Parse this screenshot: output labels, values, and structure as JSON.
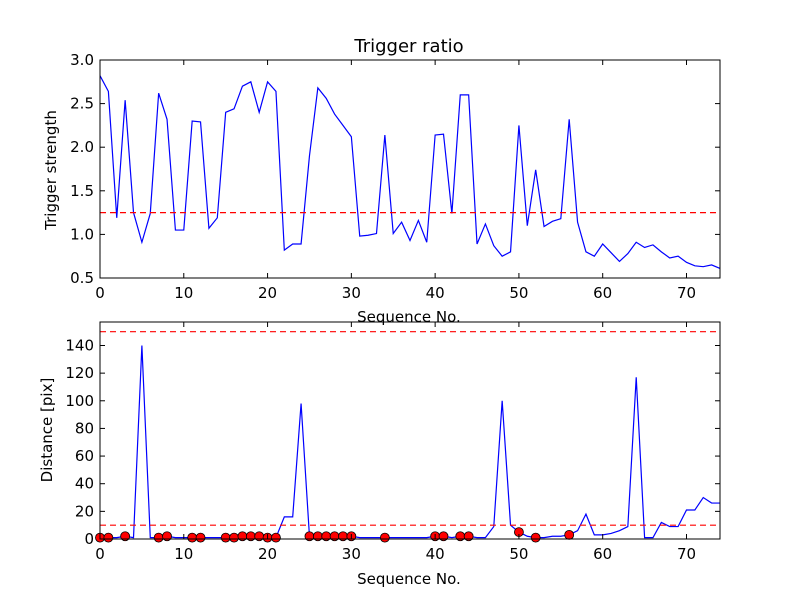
{
  "chart_data": [
    {
      "type": "line",
      "title": "Trigger ratio",
      "xlabel": "Sequence No.",
      "ylabel": "Trigger strength",
      "xlim": [
        0,
        74
      ],
      "ylim": [
        0.5,
        3.0
      ],
      "xticks": [
        0,
        10,
        20,
        30,
        40,
        50,
        60,
        70
      ],
      "yticks": [
        0.5,
        1.0,
        1.5,
        2.0,
        2.5,
        3.0
      ],
      "grid": false,
      "colors": {
        "line": "#0000ff",
        "threshold": "#ff0000"
      },
      "threshold": 1.25,
      "series": [
        {
          "x": [
            0,
            1,
            2,
            3,
            4,
            5,
            6,
            7,
            8,
            9,
            10,
            11,
            12,
            13,
            14,
            15,
            16,
            17,
            18,
            19,
            20,
            21,
            22,
            23,
            24,
            25,
            26,
            27,
            28,
            29,
            30,
            31,
            32,
            33,
            34,
            35,
            36,
            37,
            38,
            39,
            40,
            41,
            42,
            43,
            44,
            45,
            46,
            47,
            48,
            49,
            50,
            51,
            52,
            53,
            54,
            55,
            56,
            57,
            58,
            59,
            60,
            61,
            62,
            63,
            64,
            65,
            66,
            67,
            68,
            69,
            70,
            71,
            72,
            73,
            74
          ],
          "y": [
            2.82,
            2.64,
            1.19,
            2.54,
            1.25,
            0.91,
            1.24,
            2.62,
            2.32,
            1.05,
            1.05,
            2.3,
            2.29,
            1.07,
            1.19,
            2.4,
            2.44,
            2.7,
            2.75,
            2.4,
            2.75,
            2.64,
            0.82,
            0.89,
            0.89,
            1.9,
            2.68,
            2.56,
            2.38,
            2.25,
            2.12,
            0.98,
            0.99,
            1.01,
            2.14,
            1.01,
            1.14,
            0.93,
            1.16,
            0.91,
            2.14,
            2.15,
            1.24,
            2.6,
            2.6,
            0.89,
            1.12,
            0.87,
            0.75,
            0.8,
            2.25,
            1.1,
            1.74,
            1.09,
            1.15,
            1.18,
            2.32,
            1.14,
            0.8,
            0.75,
            0.89,
            0.79,
            0.69,
            0.78,
            0.91,
            0.85,
            0.88,
            0.8,
            0.73,
            0.75,
            0.68,
            0.64,
            0.63,
            0.65,
            0.61
          ]
        }
      ]
    },
    {
      "type": "line",
      "title": "",
      "xlabel": "Sequence No.",
      "ylabel": "Distance [pix]",
      "xlim": [
        0,
        74
      ],
      "ylim": [
        0,
        157
      ],
      "xticks": [
        0,
        10,
        20,
        30,
        40,
        50,
        60,
        70
      ],
      "yticks": [
        0,
        20,
        40,
        60,
        80,
        100,
        120,
        140
      ],
      "grid": false,
      "colors": {
        "line": "#0000ff",
        "threshold": "#ff0000",
        "marker": "#ff0000"
      },
      "thresholds": [
        10,
        150
      ],
      "series": [
        {
          "x": [
            0,
            1,
            2,
            3,
            4,
            5,
            6,
            7,
            8,
            9,
            10,
            11,
            12,
            13,
            14,
            15,
            16,
            17,
            18,
            19,
            20,
            21,
            22,
            23,
            24,
            25,
            26,
            27,
            28,
            29,
            30,
            31,
            32,
            33,
            34,
            35,
            36,
            37,
            38,
            39,
            40,
            41,
            42,
            43,
            44,
            45,
            46,
            47,
            48,
            49,
            50,
            51,
            52,
            53,
            54,
            55,
            56,
            57,
            58,
            59,
            60,
            61,
            62,
            63,
            64,
            65,
            66,
            67,
            68,
            69,
            70,
            71,
            72,
            73,
            74
          ],
          "y": [
            1,
            1,
            1,
            2,
            1,
            140,
            1,
            1,
            2,
            1,
            1,
            1,
            1,
            1,
            1,
            1,
            1,
            2,
            2,
            2,
            1,
            1,
            16,
            16,
            98,
            2,
            2,
            2,
            2,
            2,
            2,
            1,
            1,
            1,
            1,
            1,
            1,
            1,
            1,
            1,
            2,
            2,
            1,
            2,
            2,
            1,
            1,
            9,
            100,
            10,
            5,
            2,
            1,
            1,
            2,
            2,
            3,
            6,
            18,
            3,
            3,
            4,
            6,
            9,
            117,
            1,
            1,
            12,
            9,
            9,
            21,
            21,
            30,
            26,
            26
          ]
        }
      ],
      "markers": {
        "x": [
          0,
          1,
          3,
          7,
          8,
          11,
          12,
          15,
          16,
          17,
          18,
          19,
          20,
          21,
          25,
          26,
          27,
          28,
          29,
          30,
          34,
          40,
          41,
          43,
          44,
          50,
          52,
          56
        ],
        "y": [
          1,
          1,
          2,
          1,
          2,
          1,
          1,
          1,
          1,
          2,
          2,
          2,
          1,
          1,
          2,
          2,
          2,
          2,
          2,
          2,
          1,
          2,
          2,
          2,
          2,
          5,
          1,
          3
        ]
      }
    }
  ]
}
